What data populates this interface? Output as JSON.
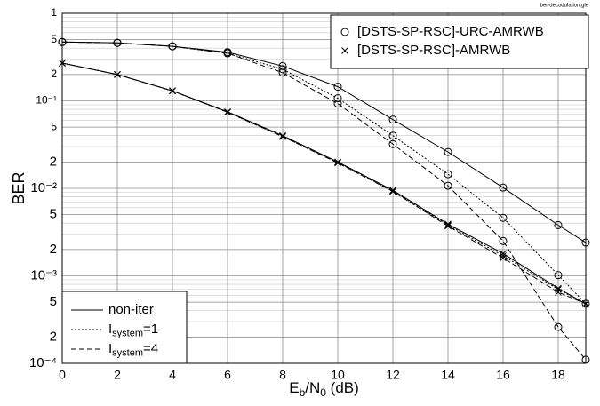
{
  "chart_data": {
    "type": "line",
    "source": "ber-decodulation.gle",
    "xlabel": [
      {
        "text": "E"
      },
      {
        "text": "b",
        "sub": true
      },
      {
        "text": "/N"
      },
      {
        "text": "0",
        "sub": true
      },
      {
        "text": " (dB)"
      }
    ],
    "ylabel": "BER",
    "log_y": true,
    "grid": true,
    "minor_grid": true,
    "color": "#000000",
    "x": [
      0,
      2,
      4,
      6,
      8,
      10,
      12,
      14,
      16,
      18,
      19
    ],
    "xlim": [
      0,
      19
    ],
    "xticks": [
      0,
      2,
      4,
      6,
      8,
      10,
      12,
      14,
      16,
      18
    ],
    "ylim": [
      0.0001,
      1
    ],
    "yticks": [
      1,
      {
        "value": 0.5,
        "label": "5"
      },
      {
        "value": 0.2,
        "label": "2"
      },
      {
        "value": 0.1,
        "label": "10⁻¹"
      },
      {
        "value": 0.05,
        "label": "5"
      },
      {
        "value": 0.02,
        "label": "2"
      },
      {
        "value": 0.01,
        "label": "10⁻²"
      },
      {
        "value": 0.005,
        "label": "5"
      },
      {
        "value": 0.002,
        "label": "2"
      },
      {
        "value": 0.001,
        "label": "10⁻³"
      },
      {
        "value": 0.0005,
        "label": "5"
      },
      {
        "value": 0.0002,
        "label": "2"
      },
      {
        "value": 0.0001,
        "label": "10⁻⁴"
      }
    ],
    "marker_legend": {
      "position": "upper right",
      "entries": [
        {
          "label": "[DSTS-SP-RSC]-URC-AMRWB",
          "marker": "circle"
        },
        {
          "label": "[DSTS-SP-RSC]-AMRWB",
          "marker": "cross"
        }
      ]
    },
    "line_legend": {
      "position": "lower left",
      "entries": [
        {
          "parts": [
            {
              "text": "non-iter"
            }
          ],
          "dash": "solid"
        },
        {
          "parts": [
            {
              "text": "I"
            },
            {
              "text": "system",
              "sub": true
            },
            {
              "text": "=1"
            }
          ],
          "dash": "dotted"
        },
        {
          "parts": [
            {
              "text": "I"
            },
            {
              "text": "system",
              "sub": true
            },
            {
              "text": "=4"
            }
          ],
          "dash": "dashed"
        }
      ]
    },
    "series": [
      {
        "marker": "circle",
        "dash": "solid",
        "values": [
          0.47,
          0.46,
          0.42,
          0.36,
          0.25,
          0.145,
          0.061,
          0.026,
          0.0102,
          0.0038,
          0.0024
        ]
      },
      {
        "marker": "circle",
        "dash": "dotted",
        "values": [
          0.47,
          0.46,
          0.42,
          0.35,
          0.23,
          0.107,
          0.04,
          0.0145,
          0.0046,
          0.00102,
          0.00048
        ]
      },
      {
        "marker": "circle",
        "dash": "dashed",
        "values": [
          0.47,
          0.46,
          0.42,
          0.35,
          0.21,
          0.093,
          0.032,
          0.0107,
          0.0025,
          0.00026,
          0.00011
        ]
      },
      {
        "marker": "cross",
        "dash": "solid",
        "values": [
          0.27,
          0.2,
          0.13,
          0.075,
          0.04,
          0.02,
          0.0095,
          0.0039,
          0.0018,
          0.00072,
          0.00048
        ]
      },
      {
        "marker": "cross",
        "dash": "dotted",
        "values": [
          0.27,
          0.2,
          0.13,
          0.074,
          0.039,
          0.0198,
          0.0093,
          0.0038,
          0.0017,
          0.0007,
          0.00048
        ]
      },
      {
        "marker": "cross",
        "dash": "dashed",
        "values": [
          0.27,
          0.2,
          0.13,
          0.074,
          0.039,
          0.0195,
          0.0092,
          0.0037,
          0.0016,
          0.00065,
          0.00048
        ]
      }
    ]
  }
}
